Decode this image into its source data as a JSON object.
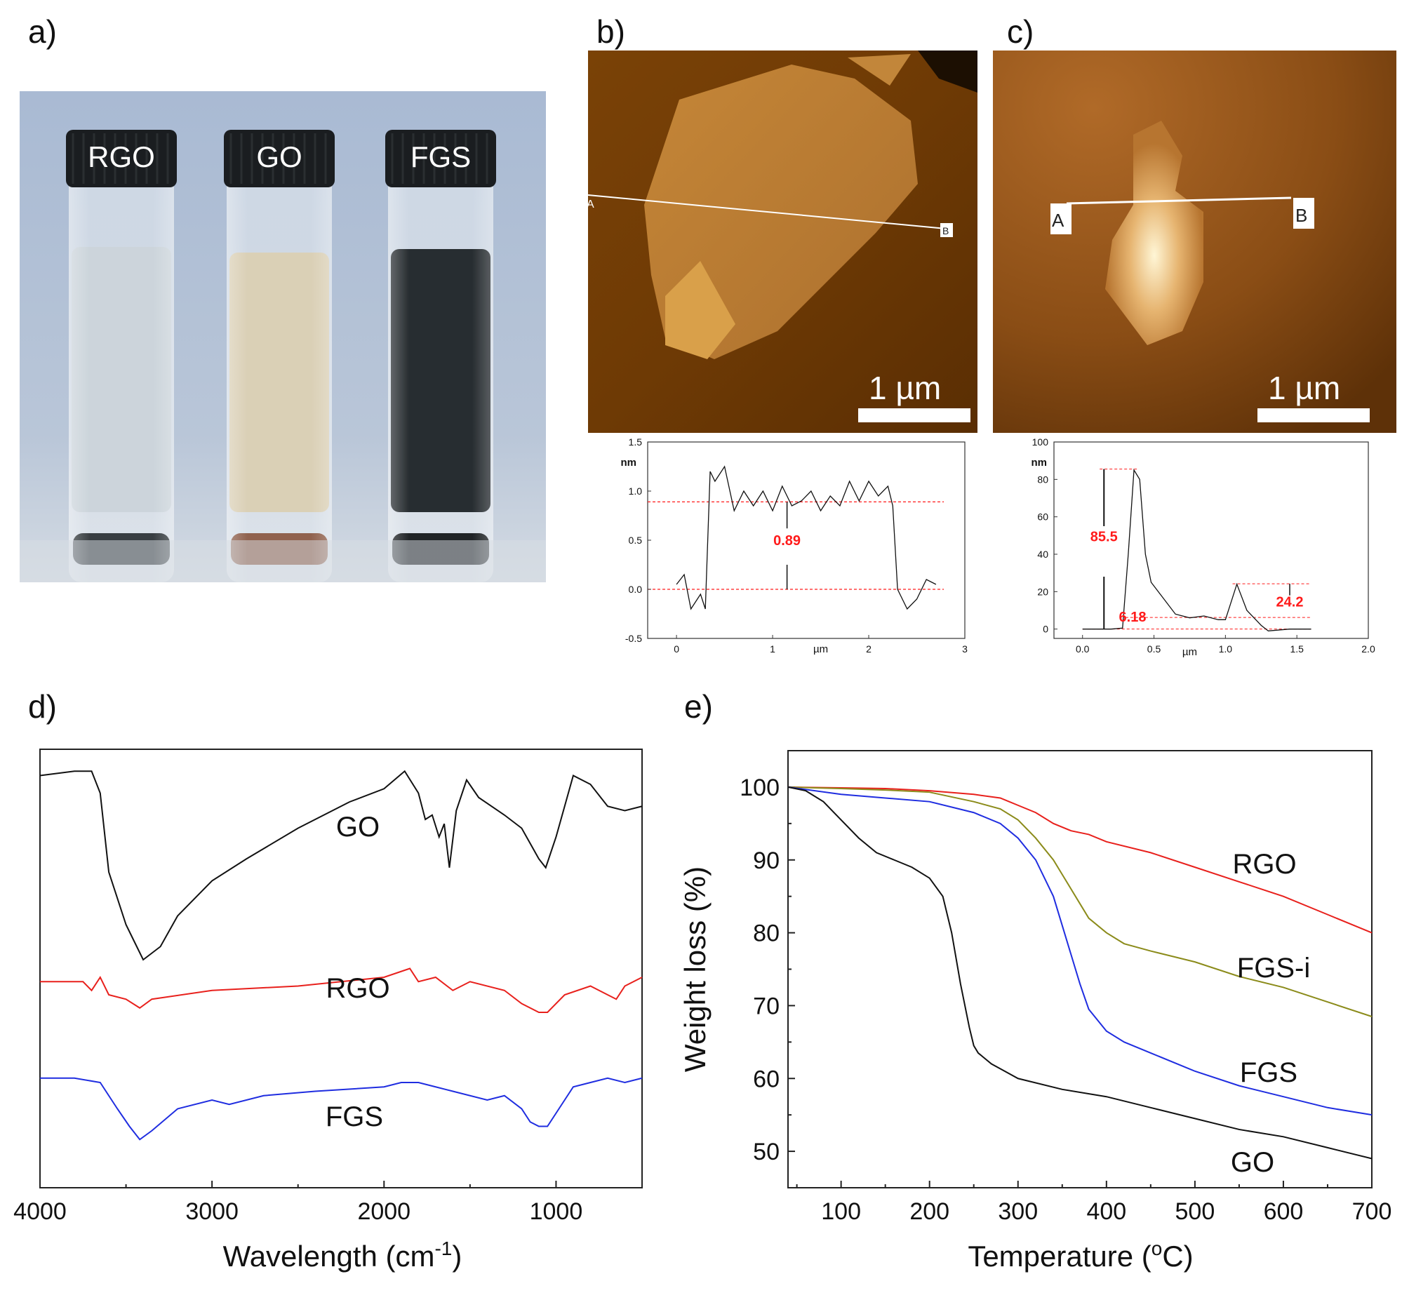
{
  "panels": {
    "a": "a)",
    "b": "b)",
    "c": "c)",
    "d": "d)",
    "e": "e)"
  },
  "photo": {
    "vials": [
      {
        "label": "RGO",
        "liquid": "#c9d2d9",
        "sediment": "#2e3438"
      },
      {
        "label": "GO",
        "liquid": "#d8cdb2",
        "sediment": "#8a5a45"
      },
      {
        "label": "FGS",
        "liquid": "#1c2226",
        "sediment": "#14181b"
      }
    ],
    "background": "#aebed4"
  },
  "afm_b": {
    "scalebar": "1 µm",
    "start": "A",
    "end": "B"
  },
  "afm_c": {
    "scalebar": "1 µm",
    "start": "A",
    "end": "B"
  },
  "colors": {
    "black": "#111111",
    "red": "#e8201c",
    "blue": "#1f2de0",
    "olive": "#8b8b1a",
    "annot": "#ff1a1a"
  },
  "chart_data": [
    {
      "id": "b-profile",
      "type": "line",
      "ylabel": "nm",
      "xlabel": "µm",
      "xlim": [
        -0.3,
        3
      ],
      "ylim": [
        -0.5,
        1.5
      ],
      "xticks": [
        0,
        1,
        2,
        3
      ],
      "yticks": [
        -0.5,
        0.0,
        0.5,
        1.0,
        1.5
      ],
      "ytick_labels": [
        "-0.5",
        "0.0",
        "0.5",
        "1.0",
        "1.5"
      ],
      "annotations": [
        {
          "text": "0.89",
          "x": 1.15,
          "y": 0.45
        }
      ],
      "ref_lines": [
        0.0,
        0.89
      ],
      "x": [
        0.0,
        0.08,
        0.15,
        0.25,
        0.3,
        0.35,
        0.4,
        0.5,
        0.6,
        0.7,
        0.8,
        0.9,
        1.0,
        1.1,
        1.2,
        1.3,
        1.4,
        1.5,
        1.6,
        1.7,
        1.8,
        1.9,
        2.0,
        2.1,
        2.2,
        2.25,
        2.3,
        2.4,
        2.5,
        2.6,
        2.7
      ],
      "y": [
        0.05,
        0.15,
        -0.2,
        -0.05,
        -0.2,
        1.2,
        1.1,
        1.25,
        0.8,
        1.0,
        0.85,
        1.0,
        0.8,
        1.05,
        0.85,
        0.9,
        1.0,
        0.8,
        0.95,
        0.85,
        1.1,
        0.9,
        1.1,
        0.95,
        1.05,
        0.85,
        0.0,
        -0.2,
        -0.1,
        0.1,
        0.05
      ]
    },
    {
      "id": "c-profile",
      "type": "line",
      "ylabel": "nm",
      "xlabel": "µm",
      "xlim": [
        -0.2,
        2.0
      ],
      "ylim": [
        0,
        100
      ],
      "xticks": [
        0.0,
        0.5,
        1.0,
        1.5,
        2.0
      ],
      "xtick_labels": [
        "0.0",
        "0.5",
        "1.0",
        "1.5",
        "2.0"
      ],
      "yticks": [
        0,
        20,
        40,
        60,
        80,
        100
      ],
      "annotations": [
        {
          "text": "85.5",
          "x": 0.15,
          "y": 47
        },
        {
          "text": "6.18",
          "x": 0.35,
          "y": 4
        },
        {
          "text": "24.2",
          "x": 1.45,
          "y": 12
        }
      ],
      "ref_lines": [
        0,
        6.18,
        24.2,
        85.5
      ],
      "x": [
        0.0,
        0.2,
        0.28,
        0.32,
        0.36,
        0.4,
        0.44,
        0.48,
        0.55,
        0.65,
        0.75,
        0.85,
        0.95,
        1.0,
        1.08,
        1.15,
        1.25,
        1.3,
        1.45,
        1.6
      ],
      "y": [
        0,
        0,
        0.5,
        40,
        85,
        80,
        40,
        25,
        18,
        8,
        6,
        7,
        5,
        5,
        24,
        10,
        2,
        -1,
        0,
        0
      ]
    },
    {
      "id": "d-ftir",
      "type": "line",
      "xlabel": "Wavelength (cm",
      "xlabel_sup": "-1",
      "xlabel_end": ")",
      "xlim": [
        4000,
        500
      ],
      "xticks": [
        4000,
        3000,
        2000,
        1000
      ],
      "ylim": [
        0,
        100
      ],
      "series": [
        {
          "name": "GO",
          "color": "#111111",
          "x": [
            4000,
            3800,
            3700,
            3650,
            3600,
            3500,
            3450,
            3400,
            3300,
            3200,
            3000,
            2800,
            2500,
            2200,
            2000,
            1880,
            1800,
            1760,
            1720,
            1680,
            1650,
            1620,
            1580,
            1520,
            1450,
            1300,
            1200,
            1100,
            1060,
            1000,
            900,
            800,
            700,
            600,
            500
          ],
          "y": [
            94,
            95,
            95,
            90,
            72,
            60,
            56,
            52,
            55,
            62,
            70,
            75,
            82,
            88,
            91,
            95,
            90,
            84,
            85,
            80,
            83,
            73,
            86,
            93,
            89,
            85,
            82,
            75,
            73,
            80,
            94,
            92,
            87,
            86,
            87
          ]
        },
        {
          "name": "RGO",
          "color": "#e8201c",
          "x": [
            4000,
            3750,
            3700,
            3650,
            3600,
            3500,
            3420,
            3350,
            3000,
            2500,
            2000,
            1850,
            1800,
            1700,
            1600,
            1500,
            1300,
            1200,
            1100,
            1050,
            950,
            800,
            700,
            650,
            600,
            500
          ],
          "y": [
            47,
            47,
            45,
            48,
            44,
            43,
            41,
            43,
            45,
            46,
            48,
            50,
            47,
            48,
            45,
            47,
            45,
            42,
            40,
            40,
            44,
            46,
            44,
            43,
            46,
            48
          ]
        },
        {
          "name": "FGS",
          "color": "#1f2de0",
          "x": [
            4000,
            3800,
            3650,
            3550,
            3480,
            3420,
            3350,
            3200,
            3000,
            2900,
            2700,
            2400,
            2000,
            1900,
            1800,
            1700,
            1600,
            1400,
            1300,
            1200,
            1150,
            1100,
            1050,
            1000,
            900,
            800,
            700,
            600,
            500
          ],
          "y": [
            25,
            25,
            24,
            18,
            14,
            11,
            13,
            18,
            20,
            19,
            21,
            22,
            23,
            24,
            24,
            23,
            22,
            20,
            21,
            18,
            15,
            14,
            14,
            17,
            23,
            24,
            25,
            24,
            25
          ]
        }
      ],
      "labels": [
        {
          "text": "GO"
        },
        {
          "text": "RGO"
        },
        {
          "text": "FGS"
        }
      ]
    },
    {
      "id": "e-tga",
      "type": "line",
      "xlabel": "Temperature (",
      "xlabel_sup": "o",
      "xlabel_end": "C)",
      "ylabel": "Weight loss (%)",
      "xlim": [
        40,
        700
      ],
      "ylim": [
        45,
        105
      ],
      "xticks": [
        100,
        200,
        300,
        400,
        500,
        600,
        700
      ],
      "yticks": [
        50,
        60,
        70,
        80,
        90,
        100
      ],
      "series": [
        {
          "name": "RGO",
          "color": "#e8201c",
          "x": [
            40,
            100,
            150,
            200,
            250,
            280,
            300,
            320,
            340,
            360,
            380,
            400,
            450,
            500,
            550,
            600,
            650,
            700
          ],
          "y": [
            100,
            99.9,
            99.8,
            99.5,
            99,
            98.5,
            97.5,
            96.5,
            95,
            94,
            93.5,
            92.5,
            91,
            89,
            87,
            85,
            82.5,
            80
          ]
        },
        {
          "name": "FGS-i",
          "color": "#8b8b1a",
          "x": [
            40,
            100,
            150,
            200,
            250,
            280,
            300,
            320,
            340,
            350,
            360,
            370,
            380,
            400,
            420,
            450,
            500,
            550,
            600,
            650,
            700
          ],
          "y": [
            100,
            99.8,
            99.6,
            99.3,
            98,
            97,
            95.5,
            93,
            90,
            88,
            86,
            84,
            82,
            80,
            78.5,
            77.5,
            76,
            74,
            72.5,
            70.5,
            68.5
          ]
        },
        {
          "name": "FGS",
          "color": "#1f2de0",
          "x": [
            40,
            100,
            150,
            200,
            250,
            280,
            300,
            320,
            340,
            350,
            360,
            370,
            380,
            400,
            420,
            450,
            500,
            550,
            600,
            650,
            700
          ],
          "y": [
            100,
            99,
            98.5,
            98,
            96.5,
            95,
            93,
            90,
            85,
            81,
            77,
            73,
            69.5,
            66.5,
            65,
            63.5,
            61,
            59,
            57.5,
            56,
            55
          ]
        },
        {
          "name": "GO",
          "color": "#111111",
          "x": [
            40,
            60,
            80,
            100,
            120,
            140,
            160,
            180,
            200,
            215,
            225,
            235,
            245,
            250,
            255,
            260,
            270,
            300,
            350,
            400,
            450,
            500,
            550,
            600,
            650,
            700
          ],
          "y": [
            100,
            99.5,
            98,
            95.5,
            93,
            91,
            90,
            89,
            87.5,
            85,
            80,
            73,
            67,
            64.5,
            63.5,
            63,
            62,
            60,
            58.5,
            57.5,
            56,
            54.5,
            53,
            52,
            50.5,
            49
          ]
        }
      ],
      "labels": [
        {
          "text": "RGO"
        },
        {
          "text": "FGS-i"
        },
        {
          "text": "FGS"
        },
        {
          "text": "GO"
        }
      ]
    }
  ]
}
